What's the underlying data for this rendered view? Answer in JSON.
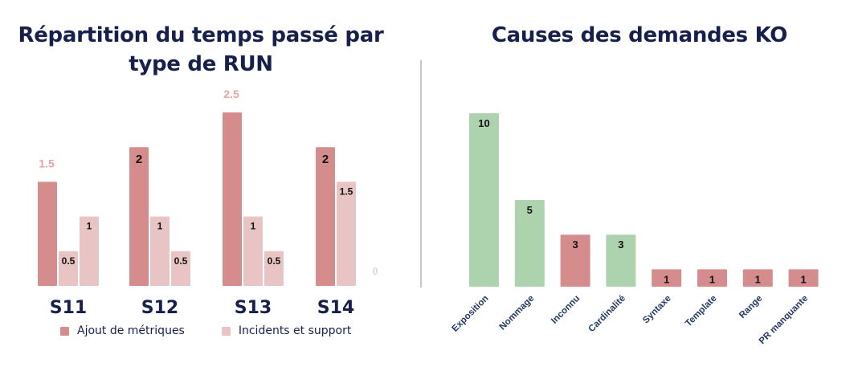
{
  "chart_data": [
    {
      "type": "bar",
      "title": "Répartition du temps passé par type de RUN",
      "title_lines": [
        "Répartition du temps passé par",
        "type de RUN"
      ],
      "categories": [
        "S11",
        "S12",
        "S13",
        "S14"
      ],
      "series": [
        {
          "name": "Ajout de métriques",
          "color": "#d48c8c",
          "values": [
            1.5,
            2,
            2.5,
            2
          ],
          "labels": [
            "1.5",
            "2",
            "2.5",
            "2"
          ]
        },
        {
          "name": "Incidents et support",
          "color": "#e9c4c4",
          "values": [
            0.5,
            1,
            1,
            1.5
          ],
          "labels": [
            "0.5",
            "1",
            "1",
            "1.5"
          ]
        },
        {
          "name": "",
          "color": "#e9c4c4",
          "values": [
            1,
            0.5,
            0.5,
            0
          ],
          "labels": [
            "1",
            "0.5",
            "0.5",
            "0"
          ]
        }
      ],
      "legend": [
        {
          "label": "Ajout de métriques",
          "color": "#d48c8c"
        },
        {
          "label": "Incidents et support",
          "color": "#e9c4c4"
        }
      ],
      "legend_position": "bottom",
      "ylim": [
        0,
        2.5
      ],
      "grid": false,
      "xlabel": "",
      "ylabel": ""
    },
    {
      "type": "bar",
      "title": "Causes des demandes KO",
      "categories": [
        "Exposition",
        "Nommage",
        "Inconnu",
        "Cardinalité",
        "Syntaxe",
        "Template",
        "Range",
        "PR manquante"
      ],
      "values": [
        10,
        5,
        3,
        3,
        1,
        1,
        1,
        1
      ],
      "labels": [
        "10",
        "5",
        "3",
        "3",
        "1",
        "1",
        "1",
        "1"
      ],
      "colors": [
        "#acd3ad",
        "#acd3ad",
        "#d48c8c",
        "#acd3ad",
        "#d48c8c",
        "#d48c8c",
        "#d48c8c",
        "#d48c8c"
      ],
      "ylim": [
        0,
        10
      ],
      "grid": false,
      "xlabel": "",
      "ylabel": ""
    }
  ]
}
